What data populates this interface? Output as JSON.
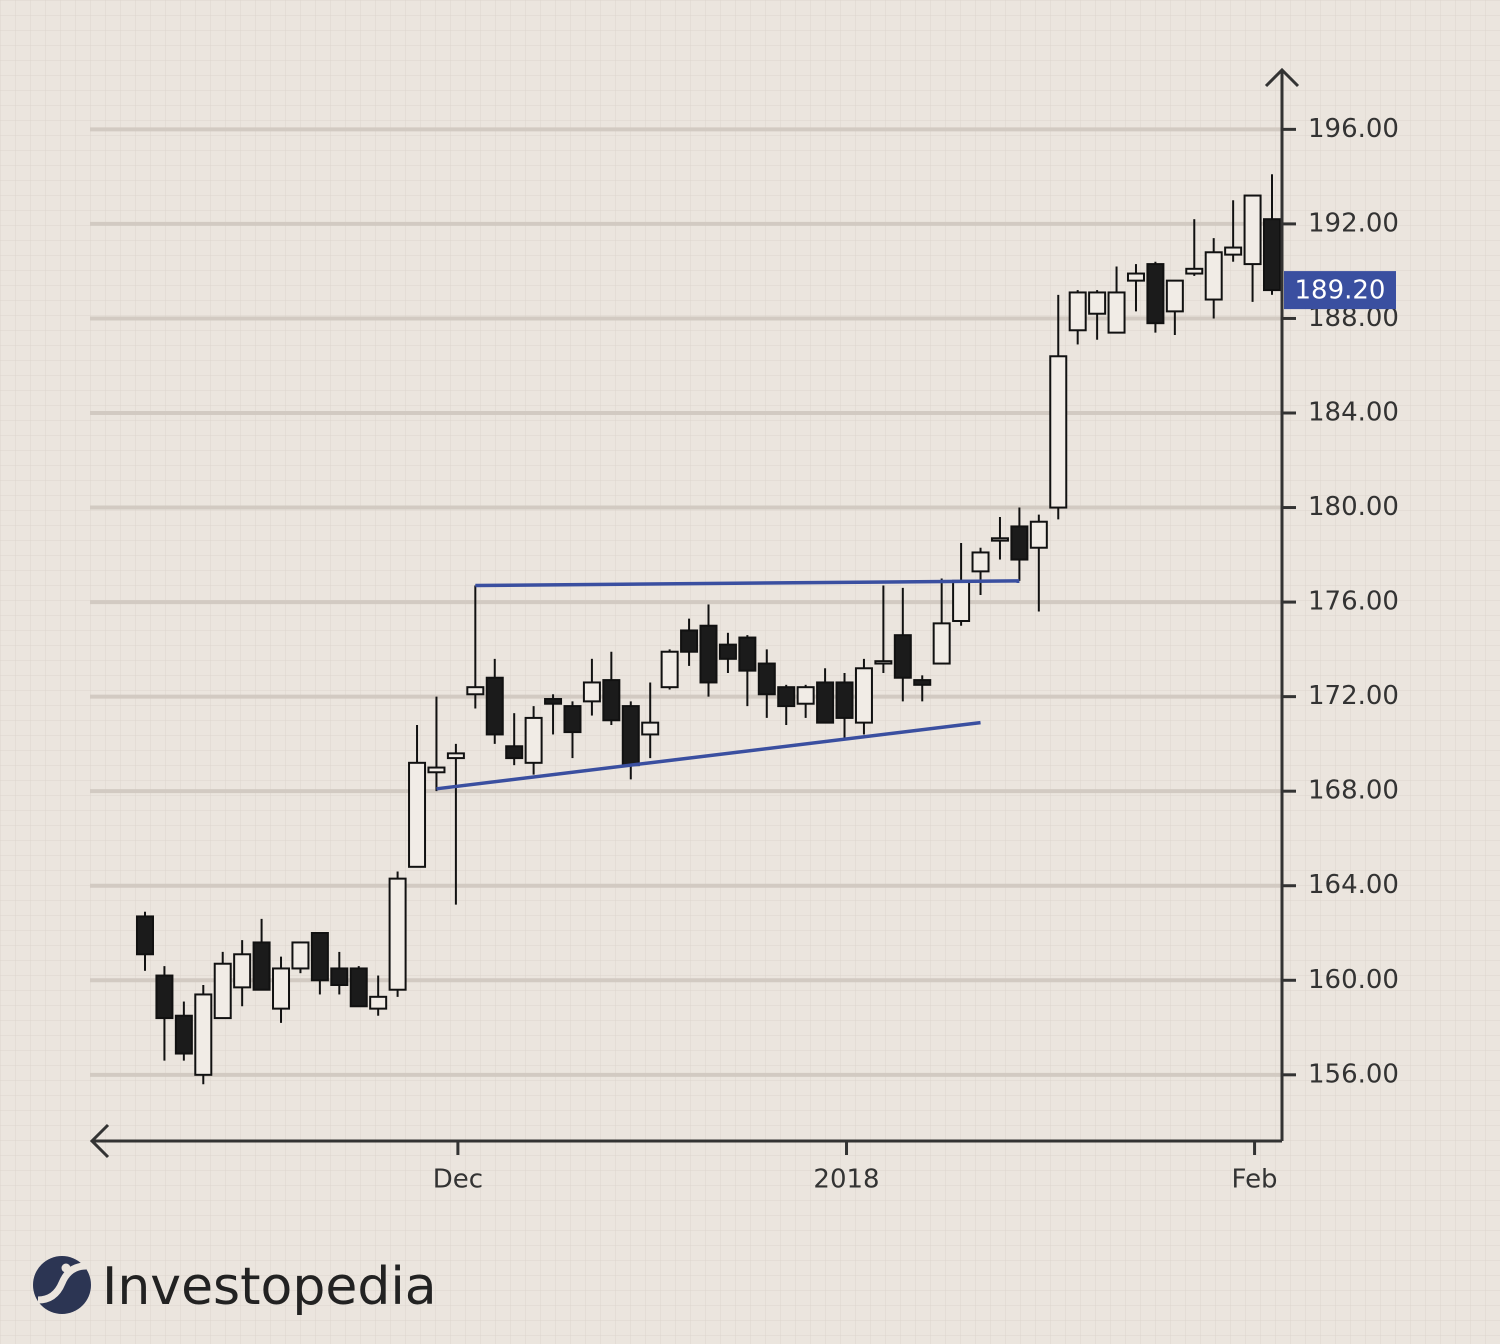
{
  "chart_data": {
    "type": "candlestick",
    "categories": [
      null,
      null,
      null,
      null,
      null,
      null,
      null,
      null,
      null,
      null,
      null,
      null,
      null,
      null,
      null,
      null,
      "Dec",
      null,
      null,
      null,
      null,
      null,
      null,
      null,
      null,
      null,
      null,
      null,
      null,
      null,
      null,
      null,
      null,
      null,
      null,
      null,
      "2018",
      null,
      null,
      null,
      null,
      null,
      null,
      null,
      null,
      null,
      null,
      null,
      null,
      null,
      null,
      null,
      null,
      null,
      null,
      null,
      null,
      "Feb",
      null
    ],
    "open": [
      162.7,
      160.2,
      158.5,
      156.0,
      158.4,
      159.7,
      161.6,
      158.8,
      160.5,
      162.0,
      160.5,
      160.5,
      158.8,
      159.6,
      164.8,
      168.8,
      169.4,
      172.1,
      172.8,
      169.9,
      169.2,
      171.9,
      171.6,
      171.8,
      172.7,
      171.6,
      170.4,
      172.4,
      174.8,
      175.0,
      174.2,
      174.5,
      173.4,
      172.4,
      171.7,
      172.6,
      172.6,
      170.9,
      173.4,
      174.6,
      172.7,
      173.4,
      175.2,
      177.3,
      178.6,
      179.2,
      178.3,
      180.0,
      187.5,
      188.2,
      187.4,
      189.6,
      190.3,
      188.3,
      189.9,
      188.8,
      190.7,
      190.3,
      192.2
    ],
    "high": [
      162.9,
      160.6,
      159.1,
      159.8,
      161.2,
      161.7,
      162.6,
      161.0,
      161.6,
      162.0,
      161.2,
      160.6,
      160.2,
      164.6,
      170.8,
      172.0,
      170.0,
      176.7,
      173.6,
      171.3,
      171.6,
      172.1,
      171.8,
      173.6,
      173.9,
      171.8,
      172.6,
      174.0,
      175.3,
      175.9,
      174.7,
      174.6,
      174.0,
      172.5,
      172.5,
      173.2,
      173.0,
      173.6,
      176.7,
      176.6,
      172.9,
      177.0,
      178.5,
      178.3,
      179.6,
      180.0,
      179.7,
      189.0,
      189.2,
      189.2,
      190.2,
      190.3,
      190.4,
      189.6,
      192.2,
      191.4,
      193.0,
      193.2,
      194.1
    ],
    "low": [
      160.4,
      156.6,
      156.6,
      155.6,
      158.4,
      158.9,
      159.6,
      158.2,
      160.3,
      159.4,
      159.4,
      158.9,
      158.5,
      159.3,
      164.8,
      168.0,
      163.2,
      171.5,
      170.0,
      169.1,
      168.7,
      170.4,
      169.4,
      171.2,
      170.8,
      168.5,
      169.4,
      172.3,
      173.3,
      172.0,
      173.0,
      171.6,
      171.1,
      170.8,
      171.1,
      170.9,
      170.2,
      170.4,
      173.0,
      171.8,
      171.8,
      173.4,
      175.0,
      176.3,
      177.8,
      176.9,
      175.6,
      179.5,
      186.9,
      187.1,
      187.4,
      188.3,
      187.4,
      187.3,
      189.8,
      188.0,
      190.4,
      188.7,
      189.0
    ],
    "close": [
      161.1,
      158.4,
      156.9,
      159.4,
      160.7,
      161.1,
      159.6,
      160.5,
      161.6,
      160.0,
      159.8,
      158.9,
      159.3,
      164.3,
      169.2,
      169.0,
      169.6,
      172.4,
      170.4,
      169.4,
      171.1,
      171.7,
      170.5,
      172.6,
      171.0,
      169.1,
      170.9,
      173.9,
      173.9,
      172.6,
      173.6,
      173.1,
      172.1,
      171.6,
      172.4,
      170.9,
      171.1,
      173.2,
      173.5,
      172.8,
      172.5,
      175.1,
      176.9,
      178.1,
      178.7,
      177.8,
      179.4,
      186.4,
      189.1,
      189.1,
      189.1,
      189.9,
      187.8,
      189.6,
      190.1,
      190.8,
      191.0,
      193.2,
      189.2
    ],
    "up_color": "#f1ece6",
    "down_color": "#1b1b1b",
    "ylim": [
      153.2,
      198.3
    ],
    "yticks": [
      {
        "value": 156,
        "label": "156.00"
      },
      {
        "value": 160,
        "label": "160.00"
      },
      {
        "value": 164,
        "label": "164.00"
      },
      {
        "value": 168,
        "label": "168.00"
      },
      {
        "value": 172,
        "label": "172.00"
      },
      {
        "value": 176,
        "label": "176.00"
      },
      {
        "value": 180,
        "label": "180.00"
      },
      {
        "value": 184,
        "label": "184.00"
      },
      {
        "value": 188,
        "label": "188.00"
      },
      {
        "value": 192,
        "label": "192.00"
      },
      {
        "value": 196,
        "label": "196.00"
      }
    ],
    "grid": true,
    "last_price": {
      "value": 189.2,
      "label": "189.20",
      "color": "#3a4fa0"
    },
    "trendlines": [
      {
        "color": "#3a4fa0",
        "x": [
          17,
          45
        ],
        "y": [
          176.7,
          176.9
        ]
      },
      {
        "color": "#3a4fa0",
        "x": [
          15,
          43
        ],
        "y": [
          168.1,
          170.9
        ]
      }
    ]
  },
  "logo": "Investopedia"
}
